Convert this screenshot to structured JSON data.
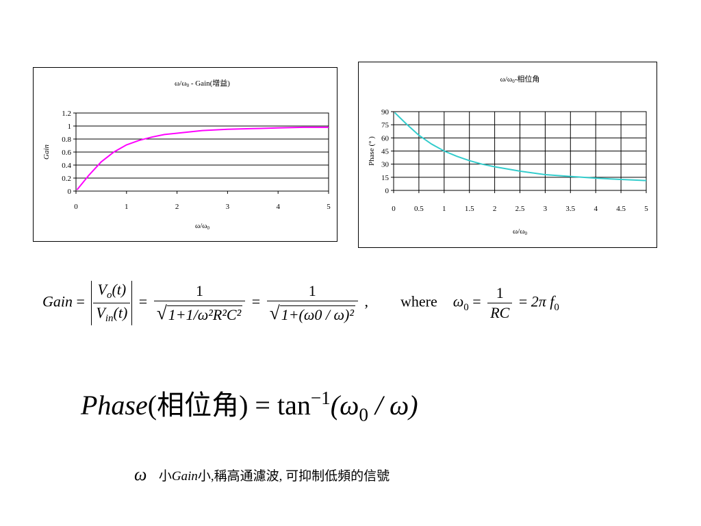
{
  "chart_data": [
    {
      "type": "line",
      "title": "ω/ω0 - Gain(增益)",
      "xlabel": "ω/ω0",
      "ylabel": "Gain",
      "xlim": [
        0,
        5
      ],
      "ylim": [
        0,
        1.2
      ],
      "x_ticks": [
        "0",
        "1",
        "2",
        "3",
        "4",
        "5"
      ],
      "y_ticks": [
        "0",
        "0.2",
        "0.4",
        "0.6",
        "0.8",
        "1",
        "1.2"
      ],
      "grid": "horizontal",
      "series": [
        {
          "color": "#ff00ff",
          "x": [
            0.02,
            0.25,
            0.5,
            0.75,
            1.0,
            1.25,
            1.5,
            1.75,
            2.0,
            2.5,
            3.0,
            3.5,
            4.0,
            4.5,
            5.0
          ],
          "y": [
            0.02,
            0.24,
            0.45,
            0.6,
            0.71,
            0.78,
            0.83,
            0.87,
            0.89,
            0.93,
            0.95,
            0.96,
            0.97,
            0.98,
            0.98
          ]
        }
      ]
    },
    {
      "type": "line",
      "title": "ω/ω0-相位角",
      "xlabel": "ω/ω0",
      "ylabel": "Phase (° )",
      "xlim": [
        0,
        5
      ],
      "ylim": [
        0,
        90
      ],
      "x_ticks": [
        "0",
        "0.5",
        "1",
        "1.5",
        "2",
        "2.5",
        "3",
        "3.5",
        "4",
        "4.5",
        "5"
      ],
      "y_ticks": [
        "0",
        "15",
        "30",
        "45",
        "60",
        "75",
        "90"
      ],
      "grid": "both",
      "series": [
        {
          "color": "#33cccc",
          "x": [
            0.02,
            0.25,
            0.5,
            0.75,
            1.0,
            1.25,
            1.5,
            1.75,
            2.0,
            2.5,
            3.0,
            3.5,
            4.0,
            4.5,
            5.0
          ],
          "y": [
            89,
            76,
            63,
            53,
            45,
            39,
            34,
            30,
            27,
            22,
            18,
            16,
            14,
            12.5,
            11.3
          ]
        }
      ]
    }
  ],
  "colors": {
    "gain_line": "#ff00ff",
    "phase_line": "#33cccc",
    "grid": "#000000"
  },
  "equations": {
    "gain": {
      "lhs": "Gain",
      "vo": "V",
      "vo_sub": "o",
      "vin": "V",
      "vin_sub": "in",
      "t": "(t)",
      "one": "1",
      "den1": "1+1/ω²R²C²",
      "den2": "1+(ω0 / ω)²",
      "comma": ",",
      "where": "where",
      "omega0": "ω",
      "omega0_sub": "0",
      "rc": "RC",
      "two_pi_f0": "2π f",
      "f0_sub": "0"
    },
    "phase": {
      "lhs_italic": "Phase",
      "chinese": "(相位角)",
      "eq": " = tan",
      "sup": "−1",
      "arg": "(ω",
      "arg_sub": "0",
      "arg_rest": " / ω)"
    },
    "note": {
      "omega": "ω",
      "text_small": "小",
      "gain_italic": "Gain",
      "text_rest": "小,稱高通濾波, 可抑制低頻的信號"
    }
  }
}
